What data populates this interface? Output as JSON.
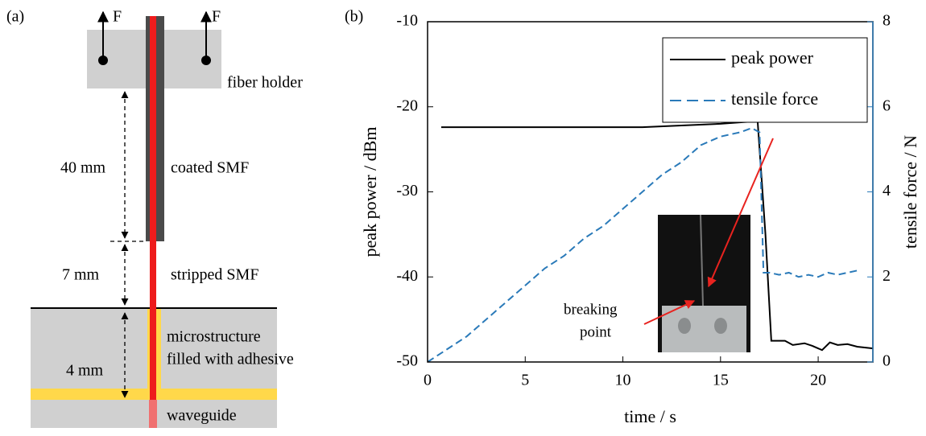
{
  "diagram": {
    "panel_label": "(a)",
    "force_labels": [
      "F",
      "F"
    ],
    "fiber_holder": "fiber holder",
    "coated_length": "40 mm",
    "coated_fiber": "coated SMF",
    "stripped_length": "7 mm",
    "stripped_fiber": "stripped SMF",
    "adhesive_length": "4 mm",
    "microstructure": [
      "microstructure",
      "filled with adhesive"
    ],
    "waveguide": "waveguide"
  },
  "chart_data": {
    "type": "line",
    "panel_label": "(b)",
    "x_label": "time / s",
    "y_label": "peak power / dBm",
    "y2_label": "tensile force / N",
    "xlim": [
      0,
      22.8
    ],
    "xticks": [
      0,
      5,
      10,
      15,
      20
    ],
    "ylim": [
      -50,
      -10
    ],
    "yticks": [
      -50,
      -40,
      -30,
      -20,
      -10
    ],
    "y2lim": [
      0,
      8
    ],
    "y2ticks": [
      0,
      2,
      4,
      6,
      8
    ],
    "y2color": "#2a7ab9",
    "legend": "upper right",
    "annotation": [
      "breaking",
      "point"
    ],
    "series": [
      {
        "name": "peak power",
        "color": "#000000",
        "dash": "solid",
        "x": [
          0.7,
          5,
          10,
          11,
          13,
          15,
          16.2,
          16.9,
          17.3,
          17.6,
          18.3,
          18.7,
          19.3,
          19.7,
          20.2,
          20.6,
          21,
          21.5,
          22,
          22.8
        ],
        "values": [
          -22.4,
          -22.4,
          -22.4,
          -22.4,
          -22.2,
          -22,
          -21.8,
          -21.7,
          -35,
          -47.5,
          -47.5,
          -48,
          -47.8,
          -48.1,
          -48.6,
          -47.7,
          -48,
          -47.9,
          -48.2,
          -48.4
        ]
      },
      {
        "name": "tensile force",
        "color": "#2a7ab9",
        "dash": "dashed",
        "axis": "y2",
        "x": [
          0,
          1,
          2,
          3,
          4,
          5,
          6,
          7,
          8,
          9,
          10,
          11,
          12,
          13,
          14,
          15,
          16,
          16.6,
          17,
          17.2,
          17.5,
          18,
          18.5,
          19,
          19.5,
          20,
          20.5,
          21,
          21.5,
          22
        ],
        "values": [
          0,
          0.3,
          0.6,
          1.0,
          1.4,
          1.8,
          2.2,
          2.5,
          2.9,
          3.2,
          3.6,
          4.0,
          4.4,
          4.7,
          5.1,
          5.3,
          5.4,
          5.5,
          5.4,
          2.1,
          2.1,
          2.05,
          2.1,
          2.0,
          2.05,
          2.0,
          2.1,
          2.05,
          2.1,
          2.15
        ]
      }
    ]
  }
}
